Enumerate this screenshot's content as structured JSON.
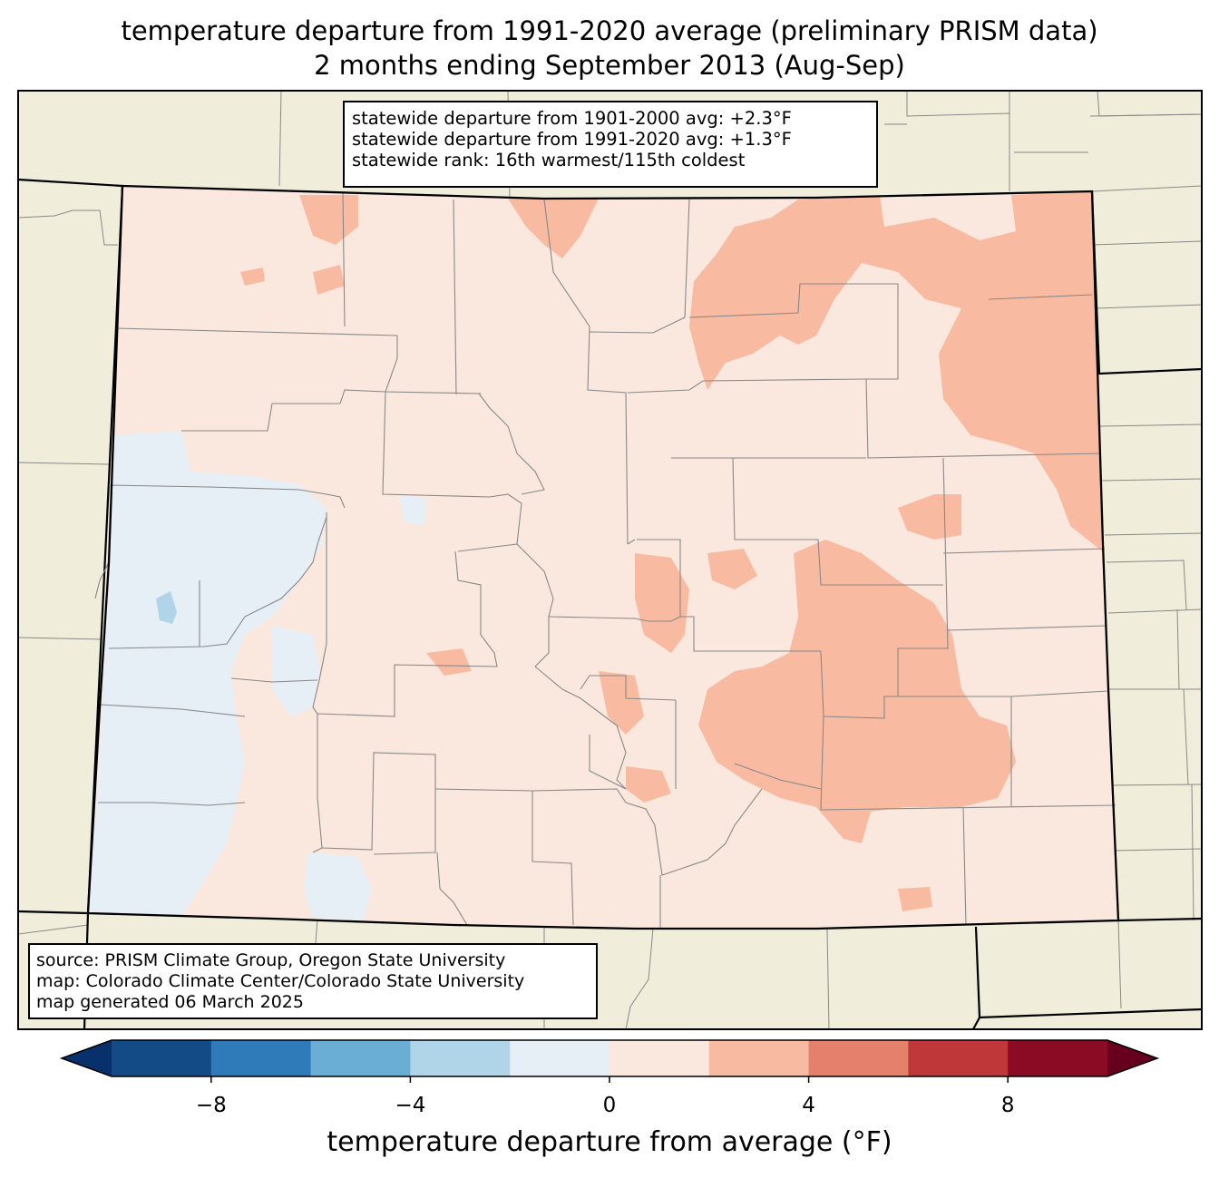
{
  "title": {
    "line1": "temperature departure from 1991-2020 average (preliminary PRISM data)",
    "line2": "2 months ending September 2013 (Aug-Sep)"
  },
  "stats": {
    "dep_1901_2000": "statewide departure from 1901-2000 avg: +2.3°F",
    "dep_1991_2020": "statewide departure from 1991-2020 avg: +1.3°F",
    "rank": "statewide rank: 16th warmest/115th coldest"
  },
  "source": {
    "line1": "source: PRISM Climate Group, Oregon State University",
    "line2": "map: Colorado Climate Center/Colorado State University",
    "line3": "map generated 06 March 2025"
  },
  "colorbar": {
    "label": "temperature departure from average (°F)",
    "ticks": [
      {
        "value": -8,
        "text": "−8"
      },
      {
        "value": -4,
        "text": "−4"
      },
      {
        "value": 0,
        "text": "0"
      },
      {
        "value": 4,
        "text": "4"
      },
      {
        "value": 8,
        "text": "8"
      }
    ],
    "range": [
      -10,
      10
    ],
    "bin_colors": [
      "#08306b",
      "#134b87",
      "#2f7ab9",
      "#6aaed6",
      "#b1d5e8",
      "#e6eef6",
      "#fae8de",
      "#f8bba1",
      "#e4806b",
      "#c0373a",
      "#8a0b23",
      "#67001f"
    ]
  },
  "colors": {
    "land": "#f0eedb",
    "state_fill": "#fae8de",
    "warm": "#f8bba1",
    "cool": "#e6eef6",
    "cooler": "#b1d5e8"
  }
}
